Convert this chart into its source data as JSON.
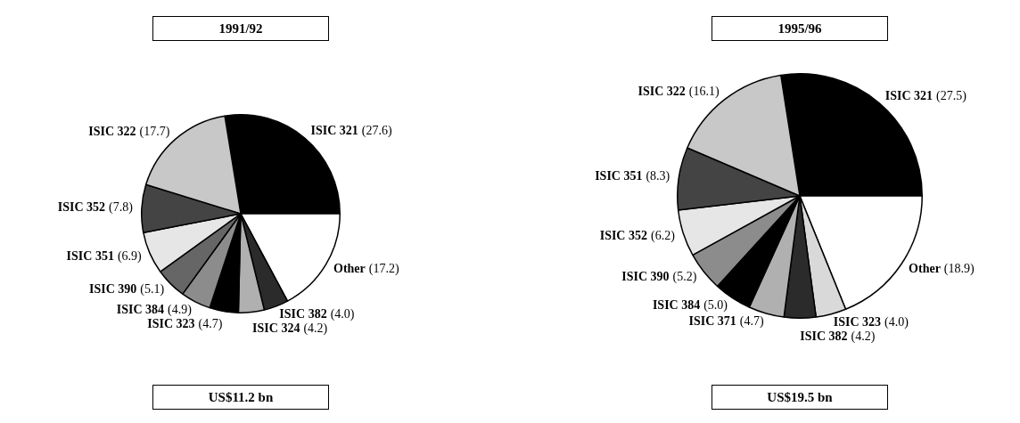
{
  "chart_data": [
    {
      "type": "pie",
      "title": "1991/92",
      "annotations": [
        "US$11.2 bn"
      ],
      "categories": [
        "ISIC 321",
        "Other",
        "ISIC 382",
        "ISIC 324",
        "ISIC 323",
        "ISIC 384",
        "ISIC 390",
        "ISIC 351",
        "ISIC 352",
        "ISIC 322"
      ],
      "values": [
        27.6,
        17.2,
        4.0,
        4.2,
        4.7,
        4.9,
        5.1,
        6.9,
        7.8,
        17.7
      ],
      "value_labels": [
        "(27.6)",
        "(17.2)",
        "(4.0)",
        "(4.2)",
        "(4.7)",
        "(4.9)",
        "(5.1)",
        "(6.9)",
        "(7.8)",
        "(17.7)"
      ],
      "colors": [
        "#000000",
        "#ffffff",
        "#2b2b2b",
        "#b0b0b0",
        "#000000",
        "#8c8c8c",
        "#666666",
        "#e6e6e6",
        "#444444",
        "#c8c8c8"
      ],
      "legend": false
    },
    {
      "type": "pie",
      "title": "1995/96",
      "annotations": [
        "US$19.5 bn"
      ],
      "categories": [
        "ISIC 321",
        "Other",
        "ISIC 323",
        "ISIC 382",
        "ISIC 371",
        "ISIC 384",
        "ISIC 390",
        "ISIC 352",
        "ISIC 351",
        "ISIC 322"
      ],
      "values": [
        27.5,
        18.9,
        4.0,
        4.2,
        4.7,
        5.0,
        5.2,
        6.2,
        8.3,
        16.1
      ],
      "value_labels": [
        "(27.5)",
        "(18.9)",
        "(4.0)",
        "(4.2)",
        "(4.7)",
        "(5.0)",
        "(5.2)",
        "(6.2)",
        "(8.3)",
        "(16.1)"
      ],
      "colors": [
        "#000000",
        "#ffffff",
        "#d9d9d9",
        "#2b2b2b",
        "#b0b0b0",
        "#000000",
        "#8c8c8c",
        "#e6e6e6",
        "#444444",
        "#c8c8c8"
      ],
      "legend": false
    }
  ]
}
